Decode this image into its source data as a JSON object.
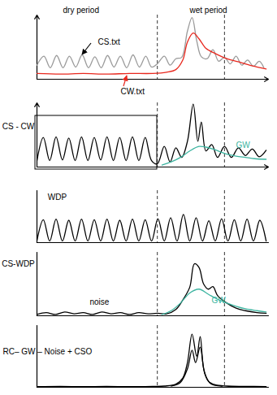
{
  "chart_data": [
    {
      "type": "line",
      "xlim": [
        0,
        100
      ],
      "ylim": [
        0,
        10
      ],
      "tick_labels": false,
      "vlines": [
        52,
        81
      ],
      "annotations": [
        {
          "text": "dry period"
        },
        {
          "text": "wet period"
        },
        {
          "text": "CS.txt"
        },
        {
          "text": "CW.txt"
        }
      ],
      "series": [
        {
          "color": "#9a9a9a",
          "x": [
            0,
            3,
            5.75,
            8.5,
            11.25,
            14,
            16.75,
            19.5,
            22.25,
            25,
            27.75,
            30.5,
            33.25,
            36,
            38.75,
            41.5,
            44.25,
            47,
            49.5,
            52,
            55,
            57.5,
            60,
            62.5,
            65,
            67,
            69,
            71,
            73.5,
            76,
            78.5,
            81,
            83.5,
            86,
            88.5,
            91,
            93.5,
            96,
            98
          ],
          "values": [
            2.2,
            3.6,
            1.8,
            3.7,
            1.8,
            3.6,
            1.9,
            3.8,
            1.8,
            3.5,
            1.8,
            3.7,
            1.9,
            3.6,
            1.8,
            3.8,
            1.9,
            3.6,
            1.9,
            2.4,
            3.6,
            2.2,
            3.2,
            3.4,
            7.5,
            9.6,
            6,
            3.5,
            3.2,
            4.6,
            2.8,
            3.4,
            2.4,
            3.6,
            2.2,
            3,
            2,
            2.8,
            1.8
          ]
        },
        {
          "color": "#e8281e",
          "x": [
            0,
            10,
            20,
            30,
            40,
            50,
            56,
            60,
            63,
            65,
            67.5,
            70,
            73,
            77,
            82,
            88,
            94,
            99
          ],
          "values": [
            0.9,
            0.8,
            0.9,
            0.8,
            0.9,
            0.9,
            1.1,
            1.5,
            3,
            5.8,
            7.2,
            6.3,
            4.8,
            4,
            3.2,
            2.6,
            2,
            1.6
          ]
        }
      ]
    },
    {
      "type": "line",
      "xlim": [
        0,
        100
      ],
      "ylim": [
        0,
        10
      ],
      "tick_labels": false,
      "vlines": [
        52,
        81
      ],
      "y_label": "CS - CW",
      "annotations": [
        {
          "text": "GW",
          "color": "#3cb4a0"
        }
      ],
      "series": [
        {
          "color": "#000000",
          "x": [
            0,
            2.75,
            5.5,
            8.25,
            11,
            13.75,
            16.5,
            19.25,
            22,
            24.75,
            27.5,
            30.25,
            33,
            35.75,
            38.5,
            41.25,
            44,
            46.75,
            49.5,
            52,
            55,
            57.5,
            60,
            62.5,
            65,
            67.5,
            69.5,
            71,
            73,
            75.5,
            78,
            81,
            84,
            87,
            90,
            93,
            96,
            99
          ],
          "values": [
            1,
            4.6,
            1,
            4.7,
            1.1,
            4.5,
            1,
            4.7,
            1,
            4.6,
            1.1,
            4.7,
            1,
            4.6,
            1,
            4.7,
            1,
            4.6,
            1,
            0.5,
            3.2,
            0.8,
            3,
            1.5,
            4,
            9.8,
            4,
            7,
            2.5,
            3.5,
            1.5,
            3.2,
            1.5,
            3,
            1.8,
            2.8,
            1.6,
            2.6
          ]
        },
        {
          "color": "#3cb4a0",
          "x": [
            54,
            58,
            62,
            66,
            70,
            73,
            76,
            79,
            82,
            86,
            90,
            94,
            99
          ],
          "values": [
            0.3,
            0.8,
            1.5,
            2.5,
            3.2,
            3.1,
            2.8,
            2.4,
            2,
            1.7,
            1.5,
            1.3,
            1.2
          ]
        }
      ]
    },
    {
      "type": "line",
      "xlim": [
        0,
        100
      ],
      "ylim": [
        0,
        10
      ],
      "tick_labels": false,
      "vlines": [
        52,
        81
      ],
      "y_label": "WDP",
      "series": [
        {
          "color": "#000000",
          "x": [
            0,
            2.75,
            5.5,
            8.25,
            11,
            13.75,
            16.5,
            19.25,
            22,
            24.75,
            27.5,
            30.25,
            33,
            35.75,
            38.5,
            41.25,
            44,
            46.75,
            49.5,
            52.25,
            55,
            57.75,
            60.5,
            63.25,
            66,
            68.75,
            71.5,
            74.25,
            77,
            79.75,
            82.5,
            85.25,
            88,
            90.75,
            93.5,
            96.25,
            99
          ],
          "values": [
            0.4,
            4.4,
            0.3,
            4.5,
            0.3,
            4.3,
            0.3,
            4.5,
            0.3,
            4.4,
            0.3,
            4.5,
            0.3,
            4.3,
            0.3,
            4.5,
            0.3,
            4.4,
            0.3,
            4.6,
            0.3,
            4.8,
            0.3,
            5.4,
            0.3,
            4.8,
            0.3,
            4.2,
            0.3,
            4.6,
            0.3,
            4.4,
            0.3,
            4.5,
            0.3,
            4.3,
            0.3
          ]
        }
      ]
    },
    {
      "type": "line",
      "xlim": [
        0,
        100
      ],
      "ylim": [
        0,
        10
      ],
      "tick_labels": false,
      "vlines": [
        52,
        81
      ],
      "y_label": "CS-WDP",
      "annotations": [
        {
          "text": "noise"
        },
        {
          "text": "GW",
          "color": "#3cb4a0"
        }
      ],
      "series": [
        {
          "color": "#000000",
          "x": [
            0,
            4,
            8,
            12,
            16,
            20,
            24,
            28,
            32,
            36,
            40,
            44,
            48,
            52,
            56,
            60,
            63,
            66,
            68,
            70,
            72,
            74,
            76,
            78,
            82,
            86,
            90,
            95,
            99
          ],
          "values": [
            0.2,
            0.5,
            0.2,
            0.6,
            0.3,
            0.5,
            0.2,
            0.6,
            0.3,
            0.5,
            0.2,
            0.5,
            0.3,
            0.4,
            0.3,
            1,
            2.5,
            4.5,
            8.2,
            7.6,
            5,
            4.2,
            4.6,
            3.2,
            2,
            1.2,
            0.8,
            0.5,
            0.4
          ]
        },
        {
          "color": "#3cb4a0",
          "x": [
            54,
            58,
            62,
            66,
            70,
            74,
            78,
            82,
            86,
            90,
            95,
            99
          ],
          "values": [
            0.2,
            0.8,
            2,
            3.6,
            4.2,
            3.4,
            2.6,
            2,
            1.5,
            1.1,
            0.8,
            0.6
          ]
        }
      ]
    },
    {
      "type": "line",
      "xlim": [
        0,
        100
      ],
      "ylim": [
        0,
        10
      ],
      "tick_labels": false,
      "vlines": [
        52,
        81
      ],
      "y_label": "RC– GW – Noise + CSO",
      "series": [
        {
          "color": "#000000",
          "x": [
            0,
            10,
            20,
            30,
            40,
            50,
            55,
            60,
            63,
            65,
            67,
            69,
            70.5,
            72,
            74,
            77,
            82,
            90,
            99
          ],
          "values": [
            0.1,
            0.15,
            0.1,
            0.15,
            0.1,
            0.15,
            0.2,
            0.5,
            1.5,
            4,
            8.6,
            5,
            8.2,
            3,
            1,
            0.4,
            0.2,
            0.15,
            0.1
          ]
        },
        {
          "color": "#000000",
          "x": [
            58,
            62,
            65,
            67,
            68.5,
            70.5,
            72.5,
            75,
            80
          ],
          "values": [
            0.2,
            0.8,
            3,
            6,
            4,
            6.5,
            2.2,
            0.6,
            0.2
          ]
        }
      ]
    }
  ]
}
